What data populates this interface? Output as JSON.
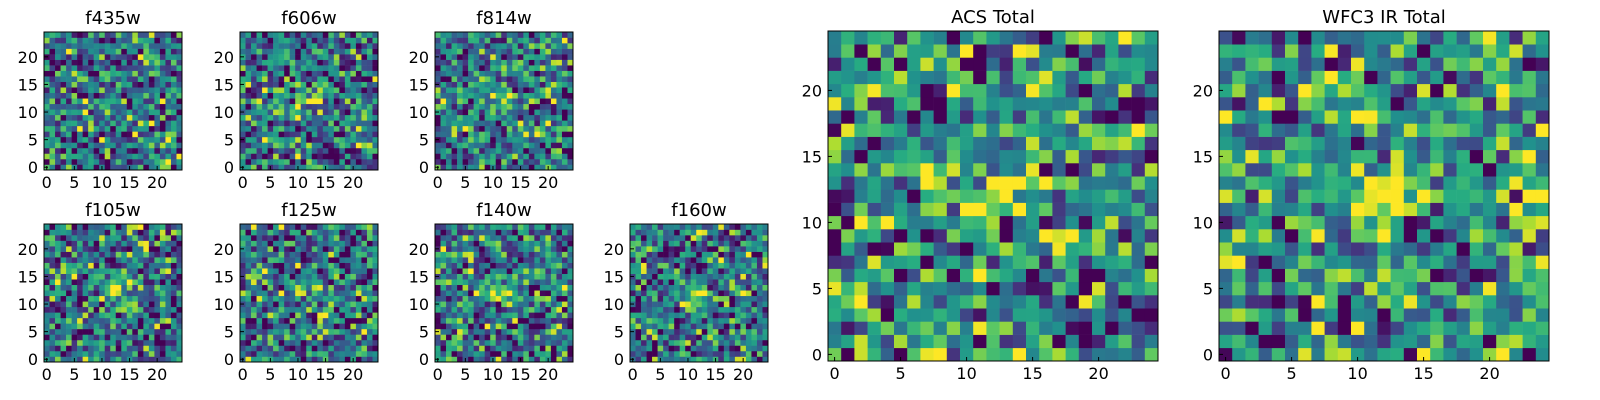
{
  "chart_data": [
    {
      "type": "heatmap",
      "title": "f435w",
      "xticks": [
        0,
        5,
        10,
        15,
        20
      ],
      "yticks": [
        0,
        5,
        10,
        15,
        20
      ],
      "xlim": [
        0,
        25
      ],
      "ylim": [
        0,
        25
      ],
      "grid_size": [
        25,
        25
      ],
      "colormap": "viridis",
      "bright_spot": null
    },
    {
      "type": "heatmap",
      "title": "f606w",
      "xticks": [
        0,
        5,
        10,
        15,
        20
      ],
      "yticks": [
        0,
        5,
        10,
        15,
        20
      ],
      "xlim": [
        0,
        25
      ],
      "ylim": [
        0,
        25
      ],
      "grid_size": [
        25,
        25
      ],
      "colormap": "viridis",
      "bright_spot": [
        12,
        12
      ]
    },
    {
      "type": "heatmap",
      "title": "f814w",
      "xticks": [
        0,
        5,
        10,
        15,
        20
      ],
      "yticks": [
        0,
        5,
        10,
        15,
        20
      ],
      "xlim": [
        0,
        25
      ],
      "ylim": [
        0,
        25
      ],
      "grid_size": [
        25,
        25
      ],
      "colormap": "viridis",
      "bright_spot": [
        12,
        12
      ]
    },
    {
      "type": "heatmap",
      "title": "f105w",
      "xticks": [
        0,
        5,
        10,
        15,
        20
      ],
      "yticks": [
        0,
        5,
        10,
        15,
        20
      ],
      "xlim": [
        0,
        25
      ],
      "ylim": [
        0,
        25
      ],
      "grid_size": [
        25,
        25
      ],
      "colormap": "viridis",
      "bright_spot": [
        12,
        12
      ]
    },
    {
      "type": "heatmap",
      "title": "f125w",
      "xticks": [
        0,
        5,
        10,
        15,
        20
      ],
      "yticks": [
        0,
        5,
        10,
        15,
        20
      ],
      "xlim": [
        0,
        25
      ],
      "ylim": [
        0,
        25
      ],
      "grid_size": [
        25,
        25
      ],
      "colormap": "viridis",
      "bright_spot": [
        12,
        12
      ]
    },
    {
      "type": "heatmap",
      "title": "f140w",
      "xticks": [
        0,
        5,
        10,
        15,
        20
      ],
      "yticks": [
        0,
        5,
        10,
        15,
        20
      ],
      "xlim": [
        0,
        25
      ],
      "ylim": [
        0,
        25
      ],
      "grid_size": [
        25,
        25
      ],
      "colormap": "viridis",
      "bright_spot": [
        12,
        12
      ]
    },
    {
      "type": "heatmap",
      "title": "f160w",
      "xticks": [
        0,
        5,
        10,
        15,
        20
      ],
      "yticks": [
        0,
        5,
        10,
        15,
        20
      ],
      "xlim": [
        0,
        25
      ],
      "ylim": [
        0,
        25
      ],
      "grid_size": [
        25,
        25
      ],
      "colormap": "viridis",
      "bright_spot": [
        12,
        12
      ]
    },
    {
      "type": "heatmap",
      "title": "ACS Total",
      "xticks": [
        0,
        5,
        10,
        15,
        20
      ],
      "yticks": [
        0,
        5,
        10,
        15,
        20
      ],
      "xlim": [
        0,
        25
      ],
      "ylim": [
        0,
        25
      ],
      "grid_size": [
        25,
        25
      ],
      "colormap": "viridis",
      "bright_spot": [
        12,
        12
      ]
    },
    {
      "type": "heatmap",
      "title": "WFC3 IR Total",
      "xticks": [
        0,
        5,
        10,
        15,
        20
      ],
      "yticks": [
        0,
        5,
        10,
        15,
        20
      ],
      "xlim": [
        0,
        25
      ],
      "ylim": [
        0,
        25
      ],
      "grid_size": [
        25,
        25
      ],
      "colormap": "viridis",
      "bright_spot": [
        12,
        12
      ]
    }
  ]
}
